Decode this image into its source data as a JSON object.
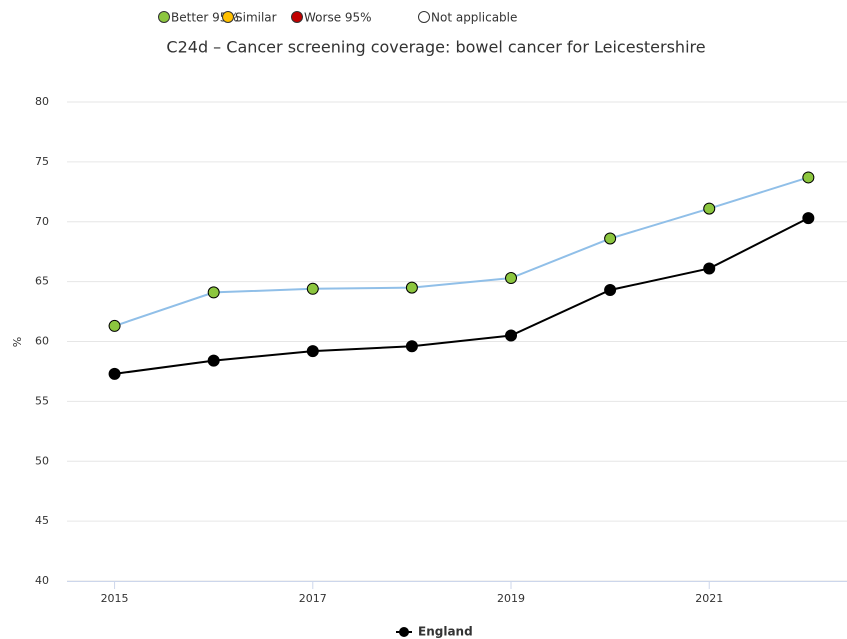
{
  "chart_data": {
    "type": "line",
    "title": "C24d – Cancer screening coverage: bowel cancer for Leicestershire",
    "y_label": "%",
    "benchmark_legend": [
      {
        "label": "Better 95%",
        "color": "#8cc63f"
      },
      {
        "label": "Similar",
        "color": "#ffc000"
      },
      {
        "label": "Worse 95%",
        "color": "#c00000"
      },
      {
        "label": "Not applicable",
        "color": "#ffffff"
      }
    ],
    "x": [
      2015,
      2016,
      2017,
      2018,
      2019,
      2020,
      2021,
      2022
    ],
    "xlim": [
      2014.52,
      2022.39
    ],
    "xticks": [
      2015,
      2017,
      2019,
      2021
    ],
    "ylim": [
      40,
      80
    ],
    "yticks": [
      40,
      45,
      50,
      55,
      60,
      65,
      70,
      75,
      80
    ],
    "grid": true,
    "series": [
      {
        "color": "#90bfe8",
        "marker_color": "#8cc63f",
        "values": [
          61.3,
          64.1,
          64.4,
          64.5,
          65.3,
          68.6,
          71.1,
          73.7
        ]
      },
      {
        "name": "England",
        "color": "#000000",
        "marker_color": "#000000",
        "values": [
          57.3,
          58.4,
          59.2,
          59.6,
          60.5,
          64.3,
          66.1,
          70.3
        ]
      }
    ]
  }
}
